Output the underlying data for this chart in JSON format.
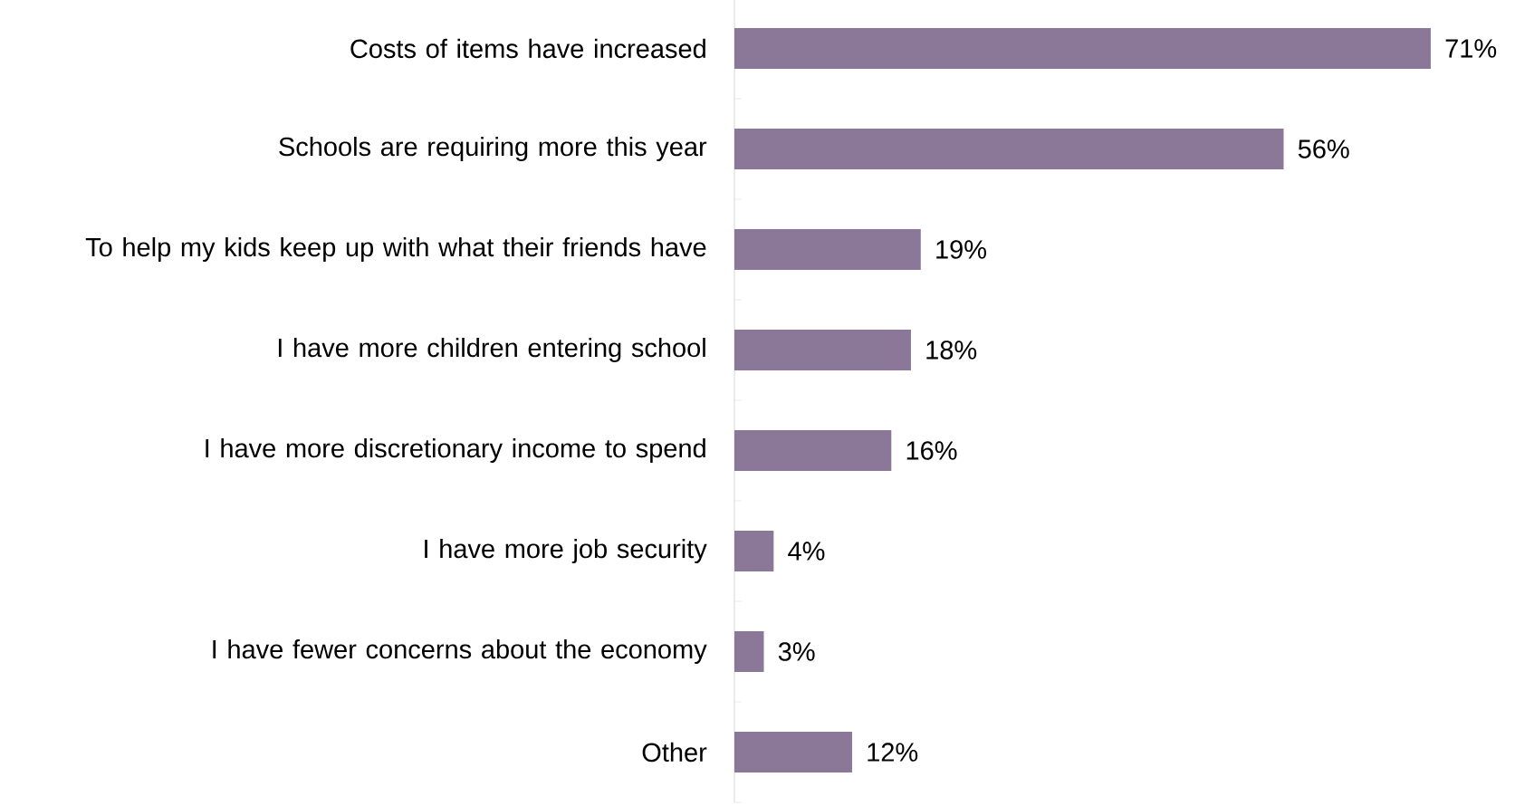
{
  "chart_data": {
    "type": "bar",
    "orientation": "horizontal",
    "categories": [
      "Costs of items have increased",
      "Schools are requiring more this year",
      "To help my kids keep up with what their friends have",
      "I have more children entering school",
      "I have more discretionary income to spend",
      "I have more job security",
      "I have fewer concerns about the economy",
      "Other"
    ],
    "values": [
      71,
      56,
      19,
      18,
      16,
      4,
      3,
      12
    ],
    "value_labels": [
      "71%",
      "56%",
      "19%",
      "18%",
      "16%",
      "4%",
      "3%",
      "12%"
    ],
    "color": "#8b7898"
  }
}
